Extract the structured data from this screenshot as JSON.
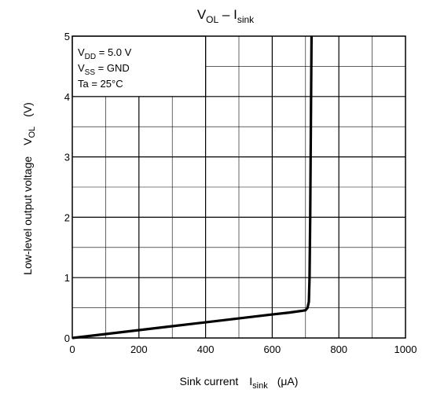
{
  "chart_data": {
    "type": "line",
    "title": {
      "main": "V",
      "main_sub": "OL",
      "dash": " – I",
      "dash_sub": "sink"
    },
    "xlabel": {
      "text": "Sink current",
      "symbol": "I",
      "symbol_sub": "sink",
      "unit": "(μA)"
    },
    "ylabel": {
      "text": "Low-level output voltage",
      "symbol": "V",
      "symbol_sub": "OL",
      "unit": "(V)"
    },
    "xlim": [
      0,
      1000
    ],
    "ylim": [
      0,
      5
    ],
    "x_ticks": [
      "0",
      "200",
      "400",
      "600",
      "800",
      "1000"
    ],
    "y_ticks": [
      "0",
      "1",
      "2",
      "3",
      "4",
      "5"
    ],
    "x_minor_step": 100,
    "y_minor_step": 0.5,
    "grid": true,
    "annotation": {
      "placement": "top-left",
      "lines": [
        {
          "pre": "V",
          "sub": "DD",
          "post": " = 5.0 V"
        },
        {
          "pre": "V",
          "sub": "SS",
          "post": " = GND"
        },
        {
          "pre": "Ta = 25°C",
          "sub": "",
          "post": ""
        }
      ]
    },
    "series": [
      {
        "x": [
          0,
          100,
          200,
          300,
          400,
          500,
          600,
          650,
          690,
          700,
          706,
          710,
          712,
          714,
          716,
          718
        ],
        "y": [
          0,
          0.065,
          0.13,
          0.195,
          0.26,
          0.325,
          0.39,
          0.42,
          0.45,
          0.46,
          0.5,
          0.6,
          1.0,
          2.0,
          3.5,
          5.0
        ]
      }
    ]
  }
}
